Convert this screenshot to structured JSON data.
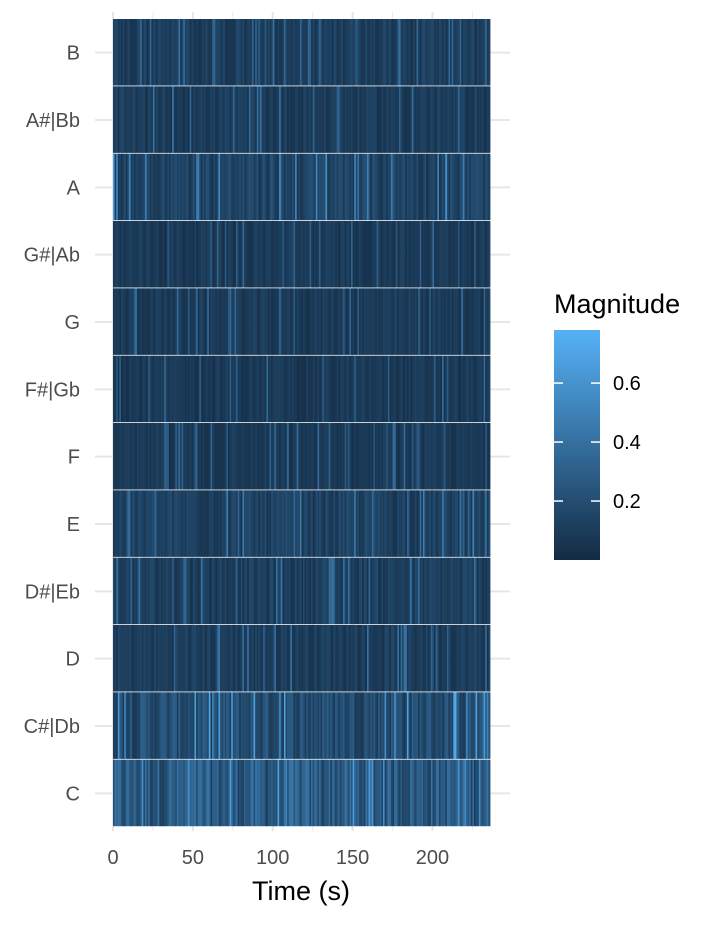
{
  "chart_data": {
    "type": "heatmap",
    "xlabel": "Time (s)",
    "ylabel": "",
    "xlim": [
      0,
      236
    ],
    "x_ticks": [
      0,
      50,
      100,
      150,
      200
    ],
    "y_categories": [
      "C",
      "C#|Db",
      "D",
      "D#|Eb",
      "E",
      "F",
      "F#|Gb",
      "G",
      "G#|Ab",
      "A",
      "A#|Bb",
      "B"
    ],
    "legend": {
      "title": "Magnitude",
      "placement": "right",
      "range": [
        0.0,
        0.78
      ],
      "ticks": [
        0.2,
        0.4,
        0.6
      ],
      "low_color": "#132B43",
      "high_color": "#56B1F7"
    },
    "time_step_s": 1,
    "row_profiles": [
      {
        "pitch": "C",
        "mean_magnitude": 0.3,
        "max_magnitude": 0.7
      },
      {
        "pitch": "C#|Db",
        "mean_magnitude": 0.22,
        "max_magnitude": 0.75
      },
      {
        "pitch": "D",
        "mean_magnitude": 0.12,
        "max_magnitude": 0.45
      },
      {
        "pitch": "D#|Eb",
        "mean_magnitude": 0.13,
        "max_magnitude": 0.45
      },
      {
        "pitch": "E",
        "mean_magnitude": 0.14,
        "max_magnitude": 0.5
      },
      {
        "pitch": "F",
        "mean_magnitude": 0.09,
        "max_magnitude": 0.4
      },
      {
        "pitch": "F#|Gb",
        "mean_magnitude": 0.09,
        "max_magnitude": 0.4
      },
      {
        "pitch": "G",
        "mean_magnitude": 0.1,
        "max_magnitude": 0.42
      },
      {
        "pitch": "G#|Ab",
        "mean_magnitude": 0.1,
        "max_magnitude": 0.4
      },
      {
        "pitch": "A",
        "mean_magnitude": 0.16,
        "max_magnitude": 0.65
      },
      {
        "pitch": "A#|Bb",
        "mean_magnitude": 0.11,
        "max_magnitude": 0.45
      },
      {
        "pitch": "B",
        "mean_magnitude": 0.12,
        "max_magnitude": 0.45
      }
    ]
  }
}
